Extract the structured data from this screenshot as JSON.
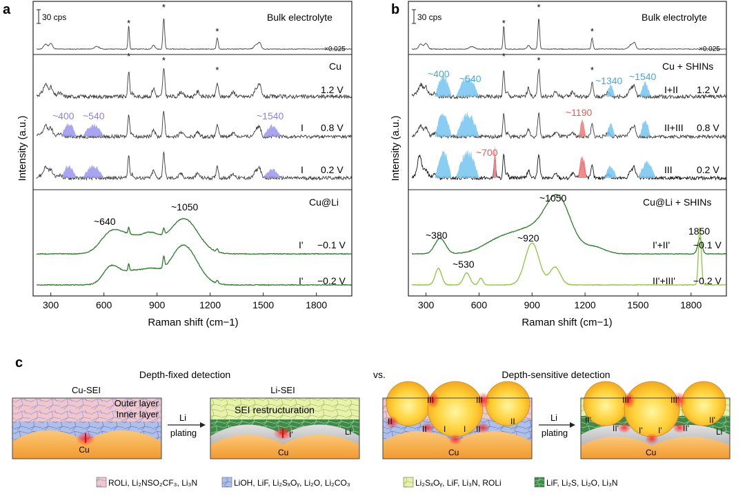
{
  "figure": {
    "panel_a": "a",
    "panel_b": "b",
    "panel_c": "c"
  },
  "chart_data": [
    {
      "type": "line",
      "panel": "a",
      "xlabel": "Raman shift (cm−1)",
      "ylabel": "Intensity (a.u.)",
      "xlim": [
        200,
        2000
      ],
      "xticks": [
        "300",
        "600",
        "900",
        "1200",
        "1500",
        "1800"
      ],
      "scale_bar": "30 cps",
      "sections": {
        "bulk": "Bulk electrolyte",
        "cu": "Cu",
        "culi": "Cu@Li"
      },
      "bulk_factor": "×0.025",
      "series": [
        {
          "name": "Bulk electrolyte",
          "peaks_star": [
            740,
            938,
            1240
          ]
        },
        {
          "name": "Cu 1.2 V",
          "voltage": "1.2 V",
          "region": ""
        },
        {
          "name": "Cu 0.8 V",
          "voltage": "0.8 V",
          "region": "I"
        },
        {
          "name": "Cu 0.2 V",
          "voltage": "0.2 V",
          "region": "I"
        },
        {
          "name": "Cu@Li −0.1 V",
          "voltage": "−0.1 V",
          "region": "I'"
        },
        {
          "name": "Cu@Li −0.2 V",
          "voltage": "−0.2 V",
          "region": "I'"
        }
      ],
      "annotations": [
        "~400",
        "~540",
        "~1540",
        "~640",
        "~1050"
      ],
      "star": "*"
    },
    {
      "type": "line",
      "panel": "b",
      "xlabel": "Raman shift (cm−1)",
      "ylabel": "Intensity (a.u.)",
      "xlim": [
        200,
        2000
      ],
      "xticks": [
        "300",
        "600",
        "900",
        "1200",
        "1500",
        "1800"
      ],
      "scale_bar": "30 cps",
      "sections": {
        "bulk": "Bulk electrolyte",
        "cu": "Cu + SHINs",
        "culi": "Cu@Li + SHINs"
      },
      "bulk_factor": "×0.025",
      "series": [
        {
          "name": "Bulk electrolyte",
          "peaks_star": [
            740,
            938,
            1240
          ]
        },
        {
          "name": "Cu + SHINs 1.2 V",
          "voltage": "1.2 V",
          "region": "I+II"
        },
        {
          "name": "Cu + SHINs 0.8 V",
          "voltage": "0.8 V",
          "region": "II+III"
        },
        {
          "name": "Cu + SHINs 0.2 V",
          "voltage": "0.2 V",
          "region": "III"
        },
        {
          "name": "Cu@Li + SHINs −0.1 V",
          "voltage": "−0.1 V",
          "region": "I'+II'"
        },
        {
          "name": "Cu@Li + SHINs −0.2 V",
          "voltage": "−0.2 V",
          "region": "II'+III'"
        }
      ],
      "annotations": [
        "~400",
        "~540",
        "~1340",
        "~1540",
        "~1190",
        "~700",
        "~1050",
        "~380",
        "~920",
        "~530",
        "1850"
      ],
      "star": "*"
    }
  ],
  "schematic": {
    "left_title": "Depth-fixed detection",
    "vs": "vs.",
    "right_title": "Depth-sensitive detection",
    "cu_sei": "Cu-SEI",
    "li_sei": "Li-SEI",
    "outer_layer": "Outer layer",
    "inner_layer": "Inner layer",
    "restructuration": "SEI restructuration",
    "li": "Li",
    "cu": "Cu",
    "plating_1": "Li",
    "plating_2": "plating",
    "labels": {
      "I": "I",
      "Ip": "I'",
      "II": "II",
      "IIp": "II'",
      "III": "III",
      "IIIp": "III'"
    }
  },
  "legend": [
    {
      "text": "ROLi, Li₂NSO₂CF₃, Li₃N",
      "color": "#f2b8c0"
    },
    {
      "text": "LiOH, LiF, Li₂SₓOᵧ, Li₂O, Li₂CO₃",
      "color": "#a9c0ec"
    },
    {
      "text": "Li₂SₓOᵧ, LiF, Li₃N, ROLi",
      "color": "#e6f0a2"
    },
    {
      "text": "LiF, Li₂S, Li₂O,  Li₃N",
      "color": "#3f8a4a"
    }
  ],
  "colors": {
    "grey_line": "#3a3a3a",
    "purple_fill": "#9b95ee",
    "blue_fill": "#74c4f0",
    "red_fill": "#f08080",
    "dark_green": "#2c7a2c",
    "light_green": "#8ec43c",
    "cu_orange": "#f4a63a"
  }
}
